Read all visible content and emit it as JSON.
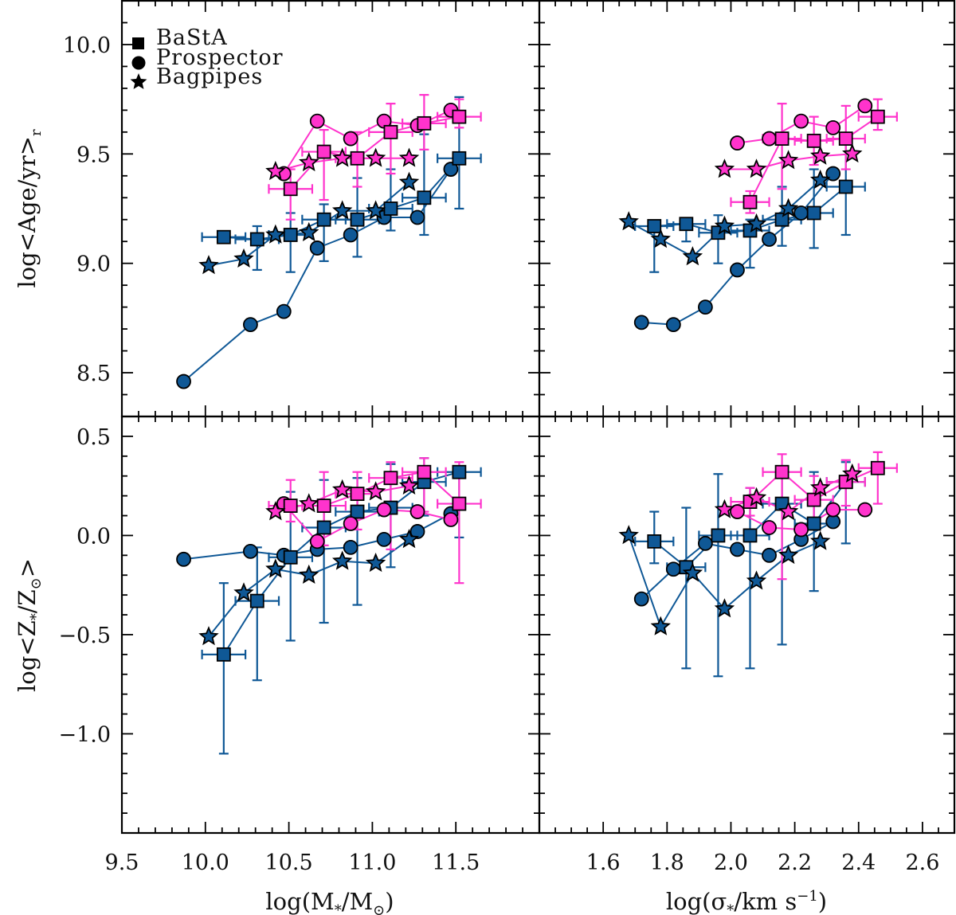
{
  "legend": [
    {
      "label": "BaStA",
      "marker": "square"
    },
    {
      "label": "Prospector",
      "marker": "circle"
    },
    {
      "label": "Bagpipes",
      "marker": "star"
    }
  ],
  "colors": {
    "blue": "#0f5896",
    "magenta": "#ff33cc",
    "edge": "#000000"
  },
  "labels": {
    "x_mass": {
      "pre": "log(M",
      "sub1": "*",
      "mid": "/M",
      "sub2": "⊙",
      "post": ")"
    },
    "x_sigma": {
      "pre": "log(σ",
      "sub1": "*",
      "mid": "/km s",
      "sup": "−1",
      "post": ")"
    },
    "y_age": {
      "pre": "log<Age/yr>",
      "sub": "r"
    },
    "y_z": {
      "pre": "log<Z",
      "sub1": "*",
      "mid": "/Z",
      "sub2": "⊙",
      "post": ">"
    }
  },
  "chart_data": [
    {
      "panel": "top-left",
      "type": "scatter",
      "xlim": [
        9.5,
        12.0
      ],
      "ylim": [
        8.3,
        10.2
      ],
      "xticks": [
        "9.5",
        "10.0",
        "10.5",
        "11.0",
        "11.5"
      ],
      "yticks": [
        "8.5",
        "9.0",
        "9.5",
        "10.0"
      ],
      "series": [
        {
          "name": "Prospector",
          "marker": "circle",
          "color": "blue",
          "x": [
            9.87,
            10.27,
            10.47,
            10.67,
            10.87,
            11.07,
            11.27,
            11.47
          ],
          "y": [
            8.46,
            8.72,
            8.78,
            9.07,
            9.13,
            9.21,
            9.21,
            9.43
          ]
        },
        {
          "name": "BaStA",
          "marker": "square",
          "color": "blue",
          "xerr": 0.13,
          "x": [
            10.11,
            10.31,
            10.51,
            10.71,
            10.91,
            11.11,
            11.31,
            11.52
          ],
          "y": [
            9.12,
            9.11,
            9.13,
            9.2,
            9.2,
            9.25,
            9.3,
            9.48
          ],
          "ylo": [
            9.11,
            8.97,
            8.96,
            9.01,
            9.03,
            9.15,
            9.13,
            9.25
          ],
          "yhi": [
            9.13,
            9.17,
            9.23,
            9.27,
            9.39,
            9.43,
            9.59,
            9.76
          ]
        },
        {
          "name": "Bagpipes",
          "marker": "star",
          "color": "blue",
          "x": [
            10.02,
            10.23,
            10.42,
            10.62,
            10.82,
            11.02,
            11.22
          ],
          "y": [
            8.99,
            9.02,
            9.13,
            9.14,
            9.24,
            9.24,
            9.37
          ]
        },
        {
          "name": "Prospector",
          "marker": "circle",
          "color": "magenta",
          "x": [
            10.47,
            10.67,
            10.87,
            11.07,
            11.27,
            11.47
          ],
          "y": [
            9.41,
            9.65,
            9.57,
            9.65,
            9.63,
            9.7
          ]
        },
        {
          "name": "BaStA",
          "marker": "square",
          "color": "magenta",
          "xerr": 0.13,
          "x": [
            10.51,
            10.71,
            10.91,
            11.11,
            11.31,
            11.52
          ],
          "y": [
            9.34,
            9.51,
            9.48,
            9.6,
            9.64,
            9.67
          ],
          "ylo": [
            9.2,
            9.29,
            9.35,
            9.41,
            9.52,
            9.62
          ],
          "yhi": [
            9.43,
            9.61,
            9.6,
            9.73,
            9.77,
            9.75
          ]
        },
        {
          "name": "Bagpipes",
          "marker": "star",
          "color": "magenta",
          "x": [
            10.42,
            10.62,
            10.82,
            11.02,
            11.22
          ],
          "y": [
            9.42,
            9.46,
            9.48,
            9.48,
            9.48
          ]
        }
      ]
    },
    {
      "panel": "top-right",
      "type": "scatter",
      "xlim": [
        1.4,
        2.7
      ],
      "ylim": [
        8.3,
        10.2
      ],
      "xticks": [
        "1.6",
        "1.8",
        "2.0",
        "2.2",
        "2.4",
        "2.6"
      ],
      "yticks": [],
      "series": [
        {
          "name": "Prospector",
          "marker": "circle",
          "color": "blue",
          "x": [
            1.72,
            1.82,
            1.92,
            2.02,
            2.12,
            2.22,
            2.32
          ],
          "y": [
            8.73,
            8.72,
            8.8,
            8.97,
            9.11,
            9.23,
            9.41
          ]
        },
        {
          "name": "BaStA",
          "marker": "square",
          "color": "blue",
          "xerr": 0.06,
          "x": [
            1.76,
            1.86,
            1.96,
            2.06,
            2.16,
            2.26,
            2.36
          ],
          "y": [
            9.17,
            9.18,
            9.14,
            9.15,
            9.2,
            9.23,
            9.35
          ],
          "ylo": [
            8.96,
            9.1,
            9.0,
            8.98,
            9.08,
            9.07,
            9.13
          ],
          "yhi": [
            9.19,
            9.2,
            9.22,
            9.2,
            9.35,
            9.43,
            9.58
          ]
        },
        {
          "name": "Bagpipes",
          "marker": "star",
          "color": "blue",
          "x": [
            1.68,
            1.78,
            1.88,
            1.98,
            2.08,
            2.18,
            2.28
          ],
          "y": [
            9.19,
            9.11,
            9.03,
            9.17,
            9.18,
            9.25,
            9.38
          ]
        },
        {
          "name": "Prospector",
          "marker": "circle",
          "color": "magenta",
          "x": [
            2.02,
            2.12,
            2.22,
            2.32,
            2.42
          ],
          "y": [
            9.55,
            9.57,
            9.65,
            9.62,
            9.72
          ]
        },
        {
          "name": "BaStA",
          "marker": "square",
          "color": "magenta",
          "xerr": 0.06,
          "x": [
            2.06,
            2.16,
            2.26,
            2.36,
            2.46
          ],
          "y": [
            9.28,
            9.57,
            9.56,
            9.57,
            9.67
          ],
          "ylo": [
            9.23,
            9.34,
            9.45,
            9.43,
            9.61
          ],
          "yhi": [
            9.33,
            9.73,
            9.67,
            9.72,
            9.75
          ]
        },
        {
          "name": "Bagpipes",
          "marker": "star",
          "color": "magenta",
          "x": [
            1.98,
            2.08,
            2.18,
            2.28,
            2.38
          ],
          "y": [
            9.43,
            9.43,
            9.47,
            9.49,
            9.5
          ]
        }
      ]
    },
    {
      "panel": "bottom-left",
      "type": "scatter",
      "xlim": [
        9.5,
        12.0
      ],
      "ylim": [
        -1.5,
        0.6
      ],
      "xticks": [
        "9.5",
        "10.0",
        "10.5",
        "11.0",
        "11.5"
      ],
      "yticks": [
        "−1.0",
        "−0.5",
        "0.0",
        "0.5"
      ],
      "series": [
        {
          "name": "Prospector",
          "marker": "circle",
          "color": "blue",
          "x": [
            9.87,
            10.27,
            10.47,
            10.67,
            10.87,
            11.07,
            11.27,
            11.47
          ],
          "y": [
            -0.12,
            -0.08,
            -0.1,
            -0.07,
            -0.06,
            -0.02,
            0.02,
            0.11
          ]
        },
        {
          "name": "BaStA",
          "marker": "square",
          "color": "blue",
          "xerr": 0.13,
          "x": [
            10.11,
            10.31,
            10.51,
            10.71,
            10.91,
            11.11,
            11.31,
            11.52
          ],
          "y": [
            -0.6,
            -0.33,
            -0.11,
            0.04,
            0.12,
            0.14,
            0.27,
            0.32
          ],
          "ylo": [
            -1.1,
            -0.73,
            -0.53,
            -0.44,
            -0.35,
            -0.16,
            0.1,
            -0.01
          ],
          "yhi": [
            -0.24,
            -0.06,
            0.22,
            0.28,
            0.29,
            0.36,
            0.39,
            0.35
          ]
        },
        {
          "name": "Bagpipes",
          "marker": "star",
          "color": "blue",
          "x": [
            10.02,
            10.23,
            10.42,
            10.62,
            10.82,
            11.02,
            11.22
          ],
          "y": [
            -0.51,
            -0.29,
            -0.17,
            -0.2,
            -0.13,
            -0.14,
            -0.02
          ]
        },
        {
          "name": "Prospector",
          "marker": "circle",
          "color": "magenta",
          "x": [
            10.47,
            10.67,
            10.87,
            11.07,
            11.27,
            11.47
          ],
          "y": [
            0.16,
            -0.03,
            0.06,
            0.13,
            0.12,
            0.08
          ]
        },
        {
          "name": "BaStA",
          "marker": "square",
          "color": "magenta",
          "xerr": 0.13,
          "x": [
            10.51,
            10.71,
            10.91,
            11.11,
            11.31,
            11.52
          ],
          "y": [
            0.15,
            0.15,
            0.21,
            0.29,
            0.32,
            0.16
          ],
          "ylo": [
            0.07,
            -0.05,
            0.03,
            -0.07,
            0.12,
            -0.24
          ],
          "yhi": [
            0.28,
            0.32,
            0.32,
            0.37,
            0.39,
            0.37
          ]
        },
        {
          "name": "Bagpipes",
          "marker": "star",
          "color": "magenta",
          "x": [
            10.42,
            10.62,
            10.82,
            11.02,
            11.22
          ],
          "y": [
            0.12,
            0.16,
            0.23,
            0.22,
            0.25
          ]
        }
      ]
    },
    {
      "panel": "bottom-right",
      "type": "scatter",
      "xlim": [
        1.4,
        2.7
      ],
      "ylim": [
        -1.5,
        0.6
      ],
      "xticks": [
        "1.6",
        "1.8",
        "2.0",
        "2.2",
        "2.4",
        "2.6"
      ],
      "yticks": [],
      "series": [
        {
          "name": "Prospector",
          "marker": "circle",
          "color": "blue",
          "x": [
            1.72,
            1.82,
            1.92,
            2.02,
            2.12,
            2.22,
            2.32
          ],
          "y": [
            -0.32,
            -0.17,
            -0.04,
            -0.07,
            -0.1,
            -0.02,
            0.07
          ]
        },
        {
          "name": "BaStA",
          "marker": "square",
          "color": "blue",
          "xerr": 0.06,
          "x": [
            1.76,
            1.86,
            1.96,
            2.06,
            2.16,
            2.26,
            2.36
          ],
          "y": [
            -0.03,
            -0.16,
            0.0,
            0.0,
            0.16,
            0.06,
            0.27
          ],
          "ylo": [
            -0.14,
            -0.67,
            -0.71,
            -0.67,
            -0.55,
            -0.28,
            -0.04
          ],
          "yhi": [
            0.12,
            0.14,
            0.31,
            0.24,
            0.31,
            0.32,
            0.37
          ]
        },
        {
          "name": "Bagpipes",
          "marker": "star",
          "color": "blue",
          "x": [
            1.68,
            1.78,
            1.88,
            1.98,
            2.08,
            2.18,
            2.28
          ],
          "y": [
            0.0,
            -0.46,
            -0.19,
            -0.37,
            -0.23,
            -0.1,
            -0.03
          ]
        },
        {
          "name": "Prospector",
          "marker": "circle",
          "color": "magenta",
          "x": [
            2.02,
            2.12,
            2.22,
            2.32,
            2.42
          ],
          "y": [
            0.12,
            0.04,
            0.03,
            0.13,
            0.13
          ]
        },
        {
          "name": "BaStA",
          "marker": "square",
          "color": "magenta",
          "xerr": 0.06,
          "x": [
            2.06,
            2.16,
            2.26,
            2.36,
            2.46
          ],
          "y": [
            0.17,
            0.32,
            0.18,
            0.27,
            0.34
          ],
          "ylo": [
            0.1,
            -0.22,
            0.05,
            0.15,
            0.16
          ],
          "yhi": [
            0.24,
            0.41,
            0.3,
            0.38,
            0.42
          ]
        },
        {
          "name": "Bagpipes",
          "marker": "star",
          "color": "magenta",
          "x": [
            1.98,
            2.08,
            2.18,
            2.28,
            2.38
          ],
          "y": [
            0.13,
            0.19,
            0.12,
            0.24,
            0.31
          ]
        }
      ]
    }
  ]
}
